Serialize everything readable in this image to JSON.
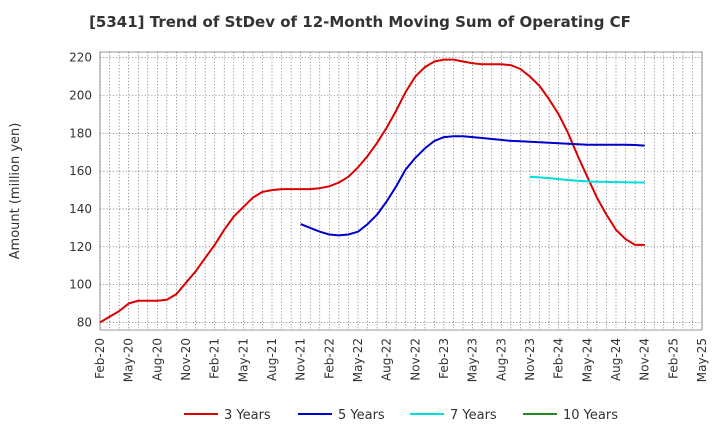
{
  "chart_data": {
    "type": "line",
    "title": "[5341]  Trend of StDev of 12-Month Moving Sum of Operating CF",
    "xlabel": "",
    "ylabel": "Amount (million yen)",
    "ylim": [
      76,
      223
    ],
    "yticks": [
      80,
      100,
      120,
      140,
      160,
      180,
      200,
      220
    ],
    "x_tick_labels": [
      "Feb-20",
      "May-20",
      "Aug-20",
      "Nov-20",
      "Feb-21",
      "May-21",
      "Aug-21",
      "Nov-21",
      "Feb-22",
      "May-22",
      "Aug-22",
      "Nov-22",
      "Feb-23",
      "May-23",
      "Aug-23",
      "Nov-23",
      "Feb-24",
      "May-24",
      "Aug-24",
      "Nov-24",
      "Feb-25",
      "May-25"
    ],
    "grid": true,
    "legend_position": "bottom",
    "series": [
      {
        "name": "3 Years",
        "color": "#dd0000",
        "x": [
          "Feb-20",
          "Mar-20",
          "Apr-20",
          "May-20",
          "Jun-20",
          "Jul-20",
          "Aug-20",
          "Sep-20",
          "Oct-20",
          "Nov-20",
          "Dec-20",
          "Jan-21",
          "Feb-21",
          "Mar-21",
          "Apr-21",
          "May-21",
          "Jun-21",
          "Jul-21",
          "Aug-21",
          "Sep-21",
          "Oct-21",
          "Nov-21",
          "Dec-21",
          "Jan-22",
          "Feb-22",
          "Mar-22",
          "Apr-22",
          "May-22",
          "Jun-22",
          "Jul-22",
          "Aug-22",
          "Sep-22",
          "Oct-22",
          "Nov-22",
          "Dec-22",
          "Jan-23",
          "Feb-23",
          "Mar-23",
          "Apr-23",
          "May-23",
          "Jun-23",
          "Jul-23",
          "Aug-23",
          "Sep-23",
          "Oct-23",
          "Nov-23",
          "Dec-23",
          "Jan-24",
          "Feb-24",
          "Mar-24",
          "Apr-24",
          "May-24",
          "Jun-24",
          "Jul-24",
          "Aug-24",
          "Sep-24",
          "Oct-24",
          "Nov-24"
        ],
        "values": [
          80,
          83,
          86,
          90,
          91.5,
          91.5,
          91.5,
          92,
          95,
          101,
          107,
          114,
          121,
          129,
          136,
          141,
          146,
          149,
          150,
          150.5,
          150.5,
          150.5,
          150.5,
          151,
          152,
          154,
          157,
          162,
          168,
          175,
          183,
          192,
          202,
          210,
          215,
          218,
          219,
          219,
          218,
          217,
          216.5,
          216.5,
          216.5,
          216,
          214,
          210,
          205,
          198,
          190,
          180,
          168,
          157,
          146,
          137,
          129,
          124,
          121,
          121
        ]
      },
      {
        "name": "5 Years",
        "color": "#0000cc",
        "x": [
          "Nov-21",
          "Dec-21",
          "Jan-22",
          "Feb-22",
          "Mar-22",
          "Apr-22",
          "May-22",
          "Jun-22",
          "Jul-22",
          "Aug-22",
          "Sep-22",
          "Oct-22",
          "Nov-22",
          "Dec-22",
          "Jan-23",
          "Feb-23",
          "Mar-23",
          "Apr-23",
          "May-23",
          "Jun-23",
          "Jul-23",
          "Aug-23",
          "Sep-23",
          "Oct-23",
          "Nov-23",
          "Dec-23",
          "Jan-24",
          "Feb-24",
          "Mar-24",
          "Apr-24",
          "May-24",
          "Jun-24",
          "Jul-24",
          "Aug-24",
          "Sep-24",
          "Oct-24",
          "Nov-24"
        ],
        "values": [
          132,
          130,
          128,
          126.5,
          126,
          126.5,
          128,
          132,
          137,
          144,
          152,
          161,
          167,
          172,
          176,
          178,
          178.5,
          178.5,
          178,
          177.5,
          177,
          176.5,
          176,
          175.8,
          175.5,
          175.3,
          175,
          174.8,
          174.5,
          174.2,
          174,
          174,
          174,
          174,
          174,
          173.8,
          173.5
        ]
      },
      {
        "name": "7 Years",
        "color": "#00dddd",
        "x": [
          "Nov-23",
          "Dec-23",
          "Jan-24",
          "Feb-24",
          "Mar-24",
          "Apr-24",
          "May-24",
          "Jun-24",
          "Jul-24",
          "Aug-24",
          "Sep-24",
          "Oct-24",
          "Nov-24"
        ],
        "values": [
          157,
          156.7,
          156.3,
          155.8,
          155.3,
          154.9,
          154.6,
          154.4,
          154.3,
          154.2,
          154.1,
          154,
          154
        ]
      },
      {
        "name": "10 Years",
        "color": "#228822",
        "x": [],
        "values": []
      }
    ]
  }
}
